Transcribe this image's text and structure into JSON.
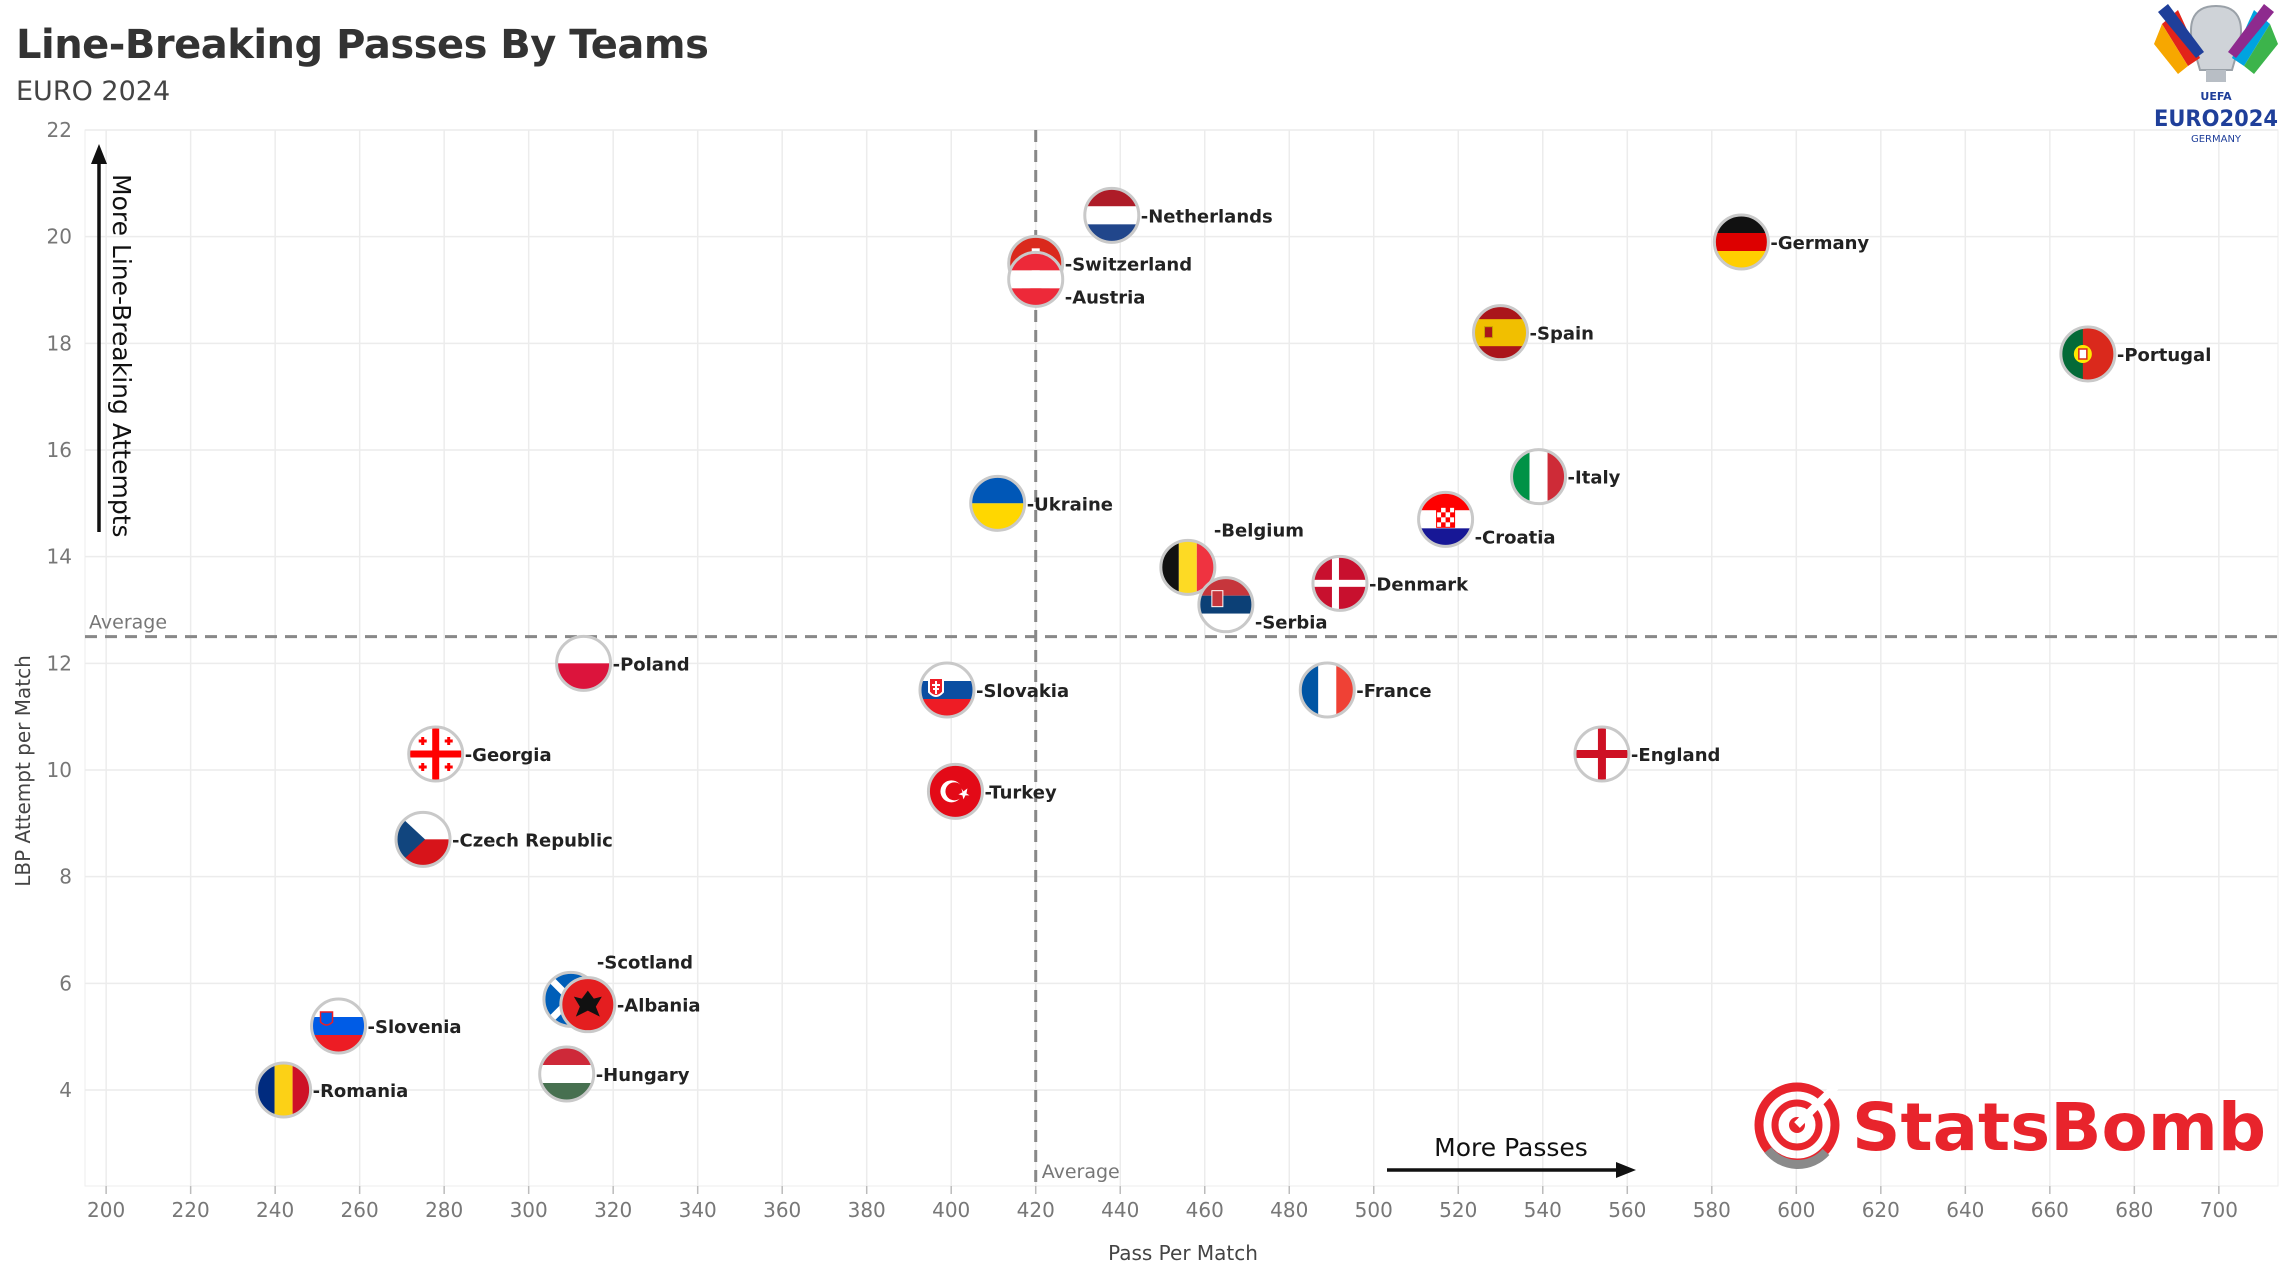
{
  "header": {
    "title": "Line-Breaking Passes By Teams",
    "subtitle": "EURO 2024"
  },
  "annotations": {
    "y_arrow": "More Line-Breaking Attempts",
    "x_arrow": "More Passes",
    "avg_label": "Average"
  },
  "logos": {
    "euro_top": "EURO2024",
    "euro_bottom": "GERMANY",
    "uefa": "UEFA",
    "statsbomb": "StatsBomb"
  },
  "colors": {
    "statsbomb_red": "#e8242c",
    "grid": "#ececec",
    "average_line": "#888888"
  },
  "chart_data": {
    "type": "scatter",
    "xlabel": "Pass Per Match",
    "ylabel": "LBP Attempt per Match",
    "xlim": [
      195,
      714
    ],
    "ylim": [
      2.2,
      22
    ],
    "xticks": [
      200,
      220,
      240,
      260,
      280,
      300,
      320,
      340,
      360,
      380,
      400,
      420,
      440,
      460,
      480,
      500,
      520,
      540,
      560,
      580,
      600,
      620,
      640,
      660,
      680,
      700
    ],
    "yticks": [
      4,
      6,
      8,
      10,
      12,
      14,
      16,
      18,
      20,
      22
    ],
    "grid": true,
    "average_x": 420,
    "average_y": 12.5,
    "points": [
      {
        "team": "-Netherlands",
        "x": 438,
        "y": 20.4,
        "flag": "netherlands",
        "label_pos": "right"
      },
      {
        "team": "-Switzerland",
        "x": 420,
        "y": 19.5,
        "flag": "switzerland",
        "label_pos": "right"
      },
      {
        "team": "-Austria",
        "x": 420,
        "y": 19.2,
        "flag": "austria",
        "label_pos": "right-below"
      },
      {
        "team": "-Germany",
        "x": 587,
        "y": 19.9,
        "flag": "germany",
        "label_pos": "right"
      },
      {
        "team": "-Spain",
        "x": 530,
        "y": 18.2,
        "flag": "spain",
        "label_pos": "right"
      },
      {
        "team": "-Portugal",
        "x": 669,
        "y": 17.8,
        "flag": "portugal",
        "label_pos": "right"
      },
      {
        "team": "-Italy",
        "x": 539,
        "y": 15.5,
        "flag": "italy",
        "label_pos": "right"
      },
      {
        "team": "-Croatia",
        "x": 517,
        "y": 14.7,
        "flag": "croatia",
        "label_pos": "right-below"
      },
      {
        "team": "-Ukraine",
        "x": 411,
        "y": 15.0,
        "flag": "ukraine",
        "label_pos": "right"
      },
      {
        "team": "-Belgium",
        "x": 456,
        "y": 13.8,
        "flag": "belgium",
        "label_pos": "right-above"
      },
      {
        "team": "-Denmark",
        "x": 492,
        "y": 13.5,
        "flag": "denmark",
        "label_pos": "right"
      },
      {
        "team": "-Serbia",
        "x": 465,
        "y": 13.1,
        "flag": "serbia",
        "label_pos": "right-below"
      },
      {
        "team": "-Poland",
        "x": 313,
        "y": 12.0,
        "flag": "poland",
        "label_pos": "right"
      },
      {
        "team": "-Slovakia",
        "x": 399,
        "y": 11.5,
        "flag": "slovakia",
        "label_pos": "right"
      },
      {
        "team": "-France",
        "x": 489,
        "y": 11.5,
        "flag": "france",
        "label_pos": "right"
      },
      {
        "team": "-Georgia",
        "x": 278,
        "y": 10.3,
        "flag": "georgia",
        "label_pos": "right"
      },
      {
        "team": "-England",
        "x": 554,
        "y": 10.3,
        "flag": "england",
        "label_pos": "right"
      },
      {
        "team": "-Turkey",
        "x": 401,
        "y": 9.6,
        "flag": "turkey",
        "label_pos": "right"
      },
      {
        "team": "-Czech Republic",
        "x": 275,
        "y": 8.7,
        "flag": "czech",
        "label_pos": "right"
      },
      {
        "team": "-Scotland",
        "x": 310,
        "y": 5.7,
        "flag": "scotland",
        "label_pos": "right-above"
      },
      {
        "team": "-Albania",
        "x": 314,
        "y": 5.6,
        "flag": "albania",
        "label_pos": "right"
      },
      {
        "team": "-Slovenia",
        "x": 255,
        "y": 5.2,
        "flag": "slovenia",
        "label_pos": "right"
      },
      {
        "team": "-Hungary",
        "x": 309,
        "y": 4.3,
        "flag": "hungary",
        "label_pos": "right"
      },
      {
        "team": "-Romania",
        "x": 242,
        "y": 4.0,
        "flag": "romania",
        "label_pos": "right"
      }
    ]
  }
}
